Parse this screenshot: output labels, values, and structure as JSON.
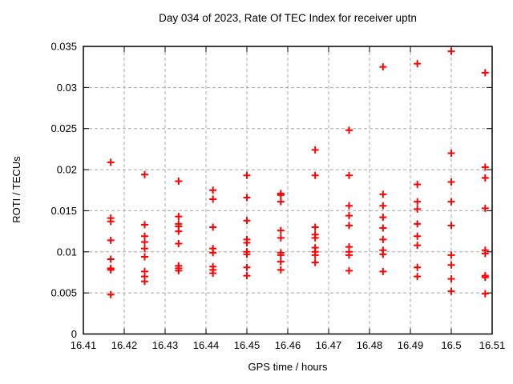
{
  "chart_data": {
    "type": "scatter",
    "title": "Day 034 of 2023, Rate Of TEC Index for receiver uptn",
    "xlabel": "GPS time / hours",
    "ylabel": "ROTI / TECUs",
    "xlim": [
      16.41,
      16.51
    ],
    "ylim": [
      0,
      0.035
    ],
    "grid": true,
    "legend_position": "none",
    "marker": {
      "shape": "plus",
      "color": "#ff0000",
      "size": 9
    },
    "grid_color": "#a8a8a8",
    "frame_color": "#000000",
    "background_color": "#ffffff",
    "xticks": {
      "values": [
        16.41,
        16.42,
        16.43,
        16.44,
        16.45,
        16.46,
        16.47,
        16.48,
        16.49,
        16.5,
        16.51
      ],
      "labels": [
        "16.41",
        "16.42",
        "16.43",
        "16.44",
        "16.45",
        "16.46",
        "16.47",
        "16.48",
        "16.49",
        "16.5",
        "16.51"
      ]
    },
    "yticks": {
      "values": [
        0,
        0.005,
        0.01,
        0.015,
        0.02,
        0.025,
        0.03,
        0.035
      ],
      "labels": [
        "0",
        "0.005",
        "0.01",
        "0.015",
        "0.02",
        "0.025",
        "0.03",
        "0.035"
      ]
    },
    "series": [
      {
        "name": "ROTI",
        "clusters": [
          {
            "t": 16.4167,
            "values": [
              0.0209,
              0.0141,
              0.0137,
              0.0114,
              0.0091,
              0.008,
              0.0078,
              0.0048
            ]
          },
          {
            "t": 16.425,
            "values": [
              0.0194,
              0.0133,
              0.0119,
              0.0112,
              0.0104,
              0.0094,
              0.0076,
              0.007,
              0.0064
            ]
          },
          {
            "t": 16.4333,
            "values": [
              0.0186,
              0.0143,
              0.0134,
              0.0131,
              0.0125,
              0.011,
              0.0083,
              0.008,
              0.0077
            ]
          },
          {
            "t": 16.4417,
            "values": [
              0.0175,
              0.0164,
              0.013,
              0.0104,
              0.0099,
              0.0082,
              0.0078,
              0.0074
            ]
          },
          {
            "t": 16.45,
            "values": [
              0.0193,
              0.0166,
              0.0138,
              0.0115,
              0.0111,
              0.01,
              0.0097,
              0.0081,
              0.0071
            ]
          },
          {
            "t": 16.4583,
            "values": [
              0.0171,
              0.0169,
              0.0161,
              0.0126,
              0.0117,
              0.0099,
              0.0096,
              0.0088,
              0.0078
            ]
          },
          {
            "t": 16.4667,
            "values": [
              0.0224,
              0.0193,
              0.013,
              0.0121,
              0.0117,
              0.0105,
              0.01,
              0.0096,
              0.0087
            ]
          },
          {
            "t": 16.475,
            "values": [
              0.0248,
              0.0193,
              0.0156,
              0.0144,
              0.0132,
              0.0106,
              0.01,
              0.0096,
              0.0077
            ]
          },
          {
            "t": 16.4833,
            "values": [
              0.0325,
              0.017,
              0.0156,
              0.0142,
              0.0129,
              0.0115,
              0.0102,
              0.0097,
              0.0076
            ]
          },
          {
            "t": 16.4917,
            "values": [
              0.0329,
              0.0182,
              0.0161,
              0.0152,
              0.0134,
              0.0119,
              0.0108,
              0.0081,
              0.007
            ]
          },
          {
            "t": 16.5,
            "values": [
              0.0344,
              0.022,
              0.0185,
              0.0161,
              0.0132,
              0.0096,
              0.0084,
              0.0067,
              0.0052
            ]
          },
          {
            "t": 16.5083,
            "values": [
              0.0318,
              0.0203,
              0.019,
              0.0153,
              0.0102,
              0.0098,
              0.0071,
              0.0069,
              0.0049
            ]
          }
        ]
      }
    ]
  }
}
